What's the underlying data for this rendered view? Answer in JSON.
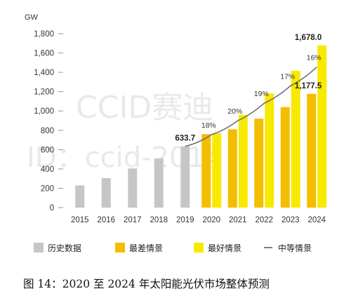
{
  "colors": {
    "historical": "#c6c6c6",
    "worst_case": "#f4bd00",
    "best_case": "#f8e900",
    "mid_line": "#707070"
  },
  "watermark": "CCID赛迪 ID：ccid-2014",
  "caption": "图 14：2020 至 2024 年太阳能光伏市场整体预测",
  "chart_data": {
    "type": "bar",
    "ylabel": "GW",
    "ylim": [
      0,
      1800
    ],
    "yticks": [
      "0",
      "200",
      "400",
      "600",
      "800",
      "1,000",
      "1,200",
      "1,400",
      "1,600",
      "1,800"
    ],
    "categories": [
      "2015",
      "2016",
      "2017",
      "2018",
      "2019",
      "2020",
      "2021",
      "2022",
      "2023",
      "2024"
    ],
    "historical": {
      "name": "历史数据",
      "values": [
        230,
        305,
        405,
        510,
        633.7,
        null,
        null,
        null,
        null,
        null
      ]
    },
    "worst_case": {
      "name": "最差情景",
      "values": [
        null,
        null,
        null,
        null,
        null,
        760,
        810,
        920,
        1040,
        1177.5
      ]
    },
    "best_case": {
      "name": "最好情景",
      "values": [
        null,
        null,
        null,
        null,
        null,
        770,
        960,
        1180,
        1415,
        1678.0
      ]
    },
    "mid_case": {
      "name": "中等情景",
      "type": "line",
      "values": [
        null,
        null,
        null,
        null,
        633.7,
        755,
        900,
        1080,
        1260,
        1455
      ]
    },
    "growth_labels": [
      {
        "category": "2020",
        "text": "18%"
      },
      {
        "category": "2021",
        "text": "20%"
      },
      {
        "category": "2022",
        "text": "19%"
      },
      {
        "category": "2023",
        "text": "17%"
      },
      {
        "category": "2024",
        "text": "16%"
      }
    ],
    "value_labels": [
      {
        "category": "2019",
        "text": "633.7"
      },
      {
        "category": "2024",
        "text": "1,678.0"
      },
      {
        "category": "2024",
        "text": "1,177.5"
      }
    ],
    "legend": [
      "历史数据",
      "最差情景",
      "最好情景",
      "中等情景"
    ]
  }
}
